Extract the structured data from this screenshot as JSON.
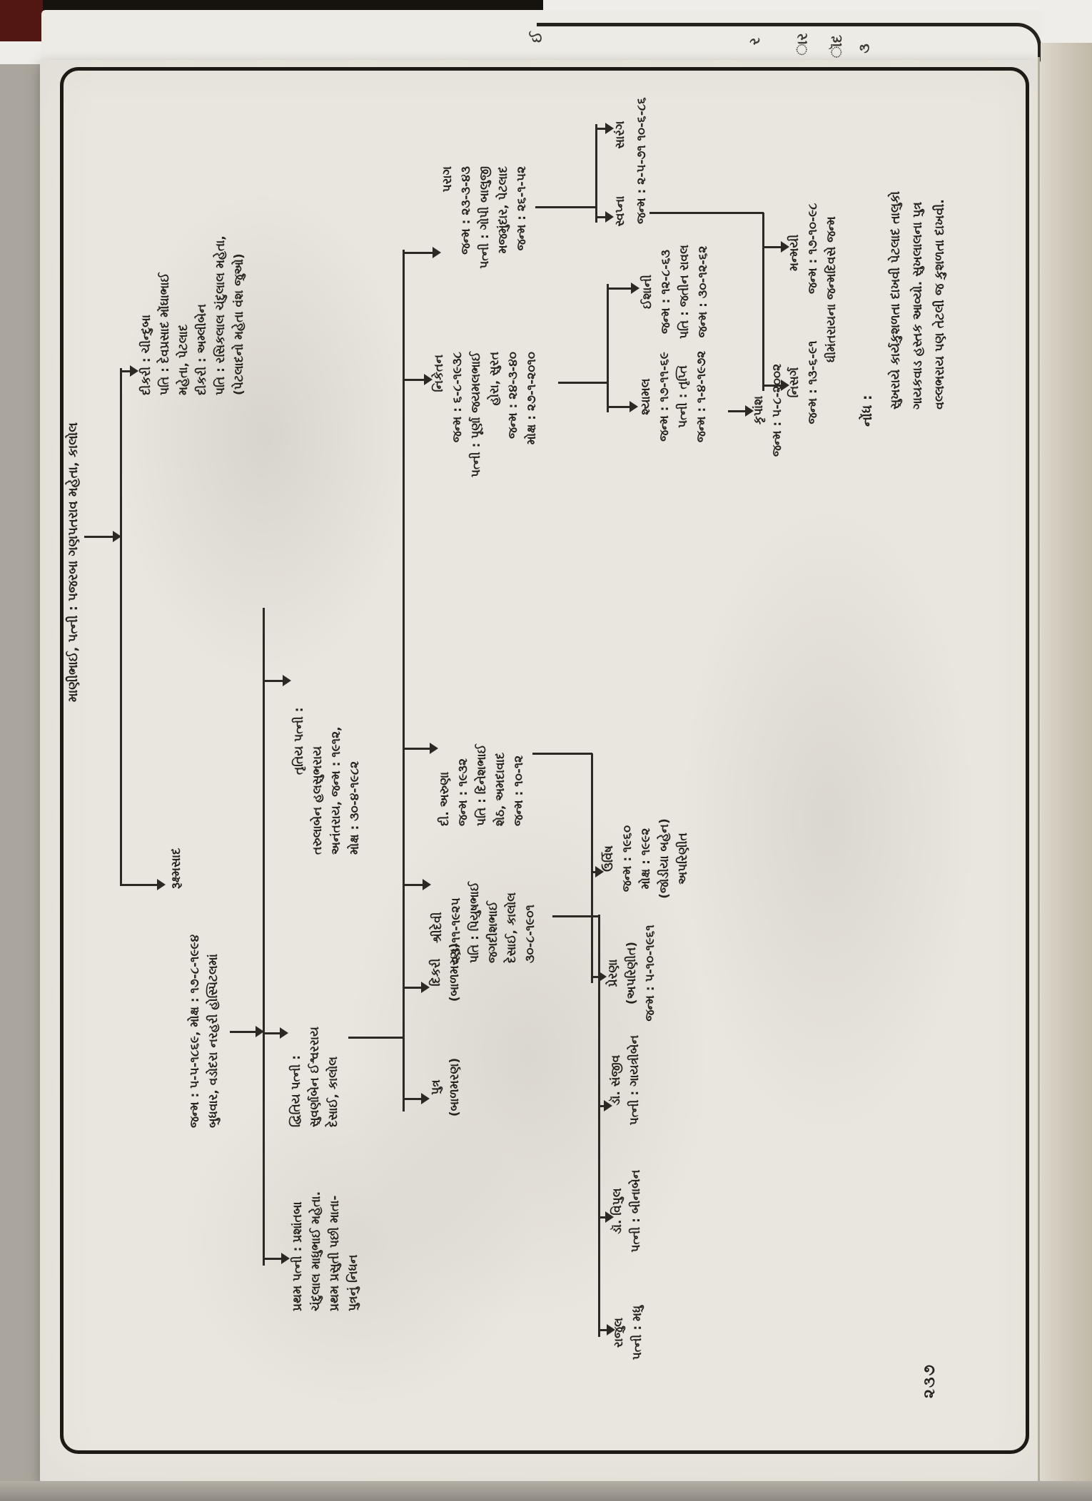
{
  "page": {
    "number": "૨૩૭",
    "edge_glyphs": [
      "ઈ",
      "ર",
      "ાર",
      "ૉદ",
      "૩"
    ]
  },
  "header": {
    "root_line": "માણીભાઈ, પત્ની : પજરબા ગણપતરાવ મહેતા, કાલોલ"
  },
  "nodes": {
    "chinduba": {
      "lines": [
        "દીકરી : ચીન્દુબા",
        "પતિ : દેવપ્રસાદ મોંઘાભાઈ",
        "મહેતા, પેટલાદ",
        "દીકરી : અમ્લીબેન",
        "પતિ : રસિકલાલ ચંદુલાલ મહેતા,",
        "(પેટલાદનો મહેતા વંશ જુઓ)"
      ]
    },
    "rukshmasad": {
      "lines": [
        "રૂક્ષ્મસાદ",
        "જન્મ : ૫-૫-૧૮૬૯, મોક્ષ : ૧૭-૮-૧૯૯૪",
        "બુધવાર, વડોદરા નરહરી હોસ્પિટલમાં"
      ]
    },
    "wife_first": {
      "lines": [
        "પ્રથમ પત્ની : પ્રશાંતબા",
        "ચંદુલાલ માધુભાઈ મહેતા.",
        "પ્રથમ પ્રસુતી પછી માતા-",
        "પુત્રનું નિધન"
      ]
    },
    "wife_second": {
      "lines": [
        "દ્વિતિય પત્ની :",
        "સુવર્ણાબેન ઈશ્વરરાય",
        "દેસાઈ, કાલોલ"
      ]
    },
    "wife_third": {
      "lines": [
        "તૃતિય પત્ની :",
        "તરુલાબેન હલસુભરાય",
        "અનંતરાય, જન્મ : ૧૯૧૨,",
        "મોક્ષ : ૩૦-૪-૧૯૮૨"
      ]
    },
    "son_infant": {
      "lines": [
        "પુત્ર",
        "(બાળમરણ)"
      ]
    },
    "daughter_infant": {
      "lines": [
        "દિકરી",
        "(બાળમરણ)"
      ]
    },
    "shreedevi": {
      "lines": [
        "શ્રીદેવી",
        "૨૩-૧૧-૧૯૨૫",
        "પતિ : પિયુષભાઈ",
        "જગદીશભાઈ",
        "દેસાઈ, કાલોલ",
        "૩૦-૮-૧૯૦૧"
      ]
    },
    "aruna": {
      "lines": [
        "દી. અરુણા",
        "જન્મ : ૧૯૩૨",
        "પતિ : દિનેશભાઈ",
        "શેઠ, અમદાવાદ",
        "જન્મ : ૧૦-૧૨"
      ]
    },
    "niketan": {
      "lines": [
        "નિકેતન",
        "જન્મ : ૬-૮-૧૯૩૮",
        "પત્ની : પૂર્ણા જયમલભાઈ",
        "હોરા, સુરત",
        "જન્મ : ૨૪-૩-૪૦",
        "મોક્ષ : ૨૭-૧-૨૦૧૦"
      ]
    },
    "parag": {
      "lines": [
        "પરાગ",
        "જન્મ : ૨૩-૩-૪૩",
        "પત્ની : ગોપી બાલુજી",
        "મજમુંદાર, પેટલાદ",
        "જન્મ : ૨૬-૧-૫૨"
      ]
    },
    "rajul": {
      "lines": [
        "રાજુલ",
        "પત્ની : મધુ"
      ]
    },
    "vipul": {
      "lines": [
        "ડૉ. વિપુલ",
        "પત્ની : બીનાબેન"
      ]
    },
    "sanjiv": {
      "lines": [
        "ડૉ. સંજીવ",
        "પત્ની : ગાયત્રીબેન"
      ]
    },
    "prerna": {
      "lines": [
        "પ્રેરણા",
        "(અપરિણીત)",
        "જન્મ : ૫-૧૦-૧૯૬૧"
      ]
    },
    "urvish": {
      "lines": [
        "ઉર્વિષ",
        "જન્મ : ૧૯૬૦",
        "મોક્ષ : ૧૯૯૨",
        "(જોડીયા બહેન)",
        "અપરિણીત"
      ]
    },
    "shyamal": {
      "lines": [
        "શ્યામલ",
        "જન્મ : ૧૭-૧૧-૬૯",
        "પત્ની : તૃપ્તિ",
        "જન્મ : ૧-૪-૧૯૭૨"
      ]
    },
    "ishani": {
      "lines": [
        "ઈશાની",
        "જન્મ : ૧૨-૮-૬૩",
        "પતિ : જતીન રાવલ",
        "જન્મ : ૩૦-૧૨-૬૨"
      ]
    },
    "swapna": {
      "label": "સ્વપ્ના"
    },
    "sarang": {
      "label": "સારંગ"
    },
    "swapna_sarang_birthdates": "જન્મ : ૨-૫-૭૧  ૧૦-૬-૮૬",
    "krupansh": {
      "lines": [
        "કૃપાંશ",
        "જન્મ : ૫-૮-૨૦૦૨"
      ]
    },
    "nisarg": {
      "lines": [
        "નિસર્ગ",
        "જન્મ : ૧૩-૬-૯૧"
      ]
    },
    "manmayi": {
      "lines": [
        "મન્મયી",
        "જન્મ : ૧૭-૧૦-૯૮",
        "ધીમંતરાયના જન્મદિવસે જન્મ"
      ]
    }
  },
  "note": {
    "heading": "નોંધ :",
    "lines": [
      "સુખરાયે કાર્યકુશળતા દાખવી પેટલાદ તાલુકો",
      "ગાયકવાડ હસ્તક આવ્યો. સુખલાલના પુત્ર",
      "વલ્લભરાય પણ તેટલી જ કુશળતા દાખવી."
    ]
  }
}
